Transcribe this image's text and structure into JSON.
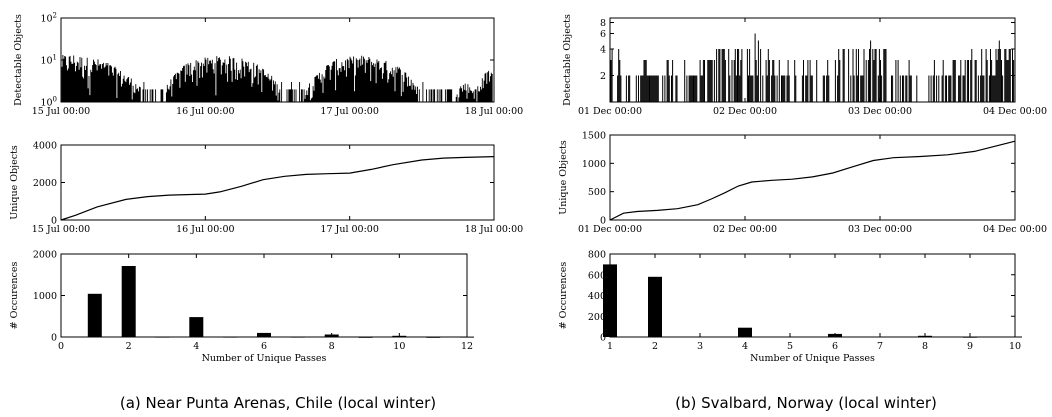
{
  "panels": [
    {
      "caption": "(a) Near Punta Arenas, Chile (local winter)",
      "charts": [
        {
          "type": "line",
          "ylabel": "Detectable Objects",
          "yscale": "log",
          "ylim": [
            1,
            100
          ],
          "yticks": [
            1,
            10,
            100
          ],
          "ytick_labels": [
            "10^0",
            "10^1",
            "10^2"
          ],
          "xlim": [
            0,
            3
          ],
          "xticks": [
            0,
            1,
            2,
            3
          ],
          "xtick_labels": [
            "15 Jul 00:00",
            "16 Jul 00:00",
            "17 Jul 00:00",
            "18 Jul 00:00"
          ],
          "description": "Dense spiky series of visible object counts, mostly 2-15, with daily active windows and lulls.",
          "envelope": [
            {
              "x": 0.0,
              "y": 13
            },
            {
              "x": 0.08,
              "y": 14
            },
            {
              "x": 0.16,
              "y": 12
            },
            {
              "x": 0.24,
              "y": 11
            },
            {
              "x": 0.32,
              "y": 9
            },
            {
              "x": 0.4,
              "y": 6
            },
            {
              "x": 0.48,
              "y": 4
            },
            {
              "x": 0.56,
              "y": 2
            },
            {
              "x": 0.64,
              "y": 2
            },
            {
              "x": 0.72,
              "y": 2
            },
            {
              "x": 0.8,
              "y": 5
            },
            {
              "x": 0.88,
              "y": 9
            },
            {
              "x": 0.96,
              "y": 11
            },
            {
              "x": 1.04,
              "y": 12
            },
            {
              "x": 1.12,
              "y": 13
            },
            {
              "x": 1.2,
              "y": 12
            },
            {
              "x": 1.28,
              "y": 11
            },
            {
              "x": 1.36,
              "y": 8
            },
            {
              "x": 1.44,
              "y": 5
            },
            {
              "x": 1.52,
              "y": 2
            },
            {
              "x": 1.6,
              "y": 2
            },
            {
              "x": 1.68,
              "y": 2
            },
            {
              "x": 1.76,
              "y": 4
            },
            {
              "x": 1.84,
              "y": 8
            },
            {
              "x": 1.92,
              "y": 11
            },
            {
              "x": 2.0,
              "y": 12
            },
            {
              "x": 2.08,
              "y": 13
            },
            {
              "x": 2.16,
              "y": 12
            },
            {
              "x": 2.24,
              "y": 10
            },
            {
              "x": 2.32,
              "y": 8
            },
            {
              "x": 2.4,
              "y": 5
            },
            {
              "x": 2.48,
              "y": 2
            },
            {
              "x": 2.56,
              "y": 2
            },
            {
              "x": 2.64,
              "y": 2
            },
            {
              "x": 2.72,
              "y": 2
            },
            {
              "x": 2.8,
              "y": 3
            },
            {
              "x": 2.88,
              "y": 2
            },
            {
              "x": 2.96,
              "y": 6
            }
          ]
        },
        {
          "type": "line",
          "ylabel": "Unique Objects",
          "ylim": [
            0,
            4000
          ],
          "yticks": [
            0,
            2000,
            4000
          ],
          "xlim": [
            0,
            3
          ],
          "xticks": [
            0,
            1,
            2,
            3
          ],
          "xtick_labels": [
            "15 Jul 00:00",
            "16 Jul 00:00",
            "17 Jul 00:00",
            "18 Jul 00:00"
          ],
          "series": [
            {
              "x": [
                0,
                0.1,
                0.25,
                0.45,
                0.6,
                0.75,
                0.9,
                1.0,
                1.1,
                1.25,
                1.4,
                1.55,
                1.7,
                1.85,
                2.0,
                2.15,
                2.3,
                2.5,
                2.65,
                2.8,
                3.0
              ],
              "y": [
                0,
                250,
                700,
                1100,
                1250,
                1330,
                1360,
                1380,
                1500,
                1800,
                2150,
                2330,
                2430,
                2470,
                2500,
                2700,
                2950,
                3200,
                3300,
                3340,
                3380
              ]
            }
          ]
        },
        {
          "type": "bar",
          "ylabel": "# Occurences",
          "xlabel": "Number of Unique Passes",
          "ylim": [
            0,
            2000
          ],
          "yticks": [
            0,
            1000,
            2000
          ],
          "xlim": [
            0,
            12
          ],
          "xticks": [
            0,
            2,
            4,
            6,
            8,
            10,
            12
          ],
          "x": [
            1,
            2,
            3,
            4,
            5,
            6,
            7,
            8,
            9,
            10,
            11,
            12
          ],
          "values": [
            1040,
            1710,
            10,
            480,
            10,
            100,
            10,
            60,
            5,
            30,
            5,
            10
          ]
        }
      ]
    },
    {
      "caption": "(b) Svalbard, Norway (local winter)",
      "charts": [
        {
          "type": "line",
          "ylabel": "Detectable Objects",
          "yscale": "log",
          "ylim": [
            1,
            9
          ],
          "yticks": [
            2,
            4,
            6,
            8
          ],
          "xlim": [
            0,
            3
          ],
          "xticks": [
            0,
            1,
            2,
            3
          ],
          "xtick_labels": [
            "01 Dec 00:00",
            "02 Dec 00:00",
            "03 Dec 00:00",
            "04 Dec 00:00"
          ],
          "description": "Sparse spiky series of visible object counts between 1 and 6 with clustered activity.",
          "envelope": [
            {
              "x": 0.0,
              "y": 4
            },
            {
              "x": 0.05,
              "y": 5
            },
            {
              "x": 0.1,
              "y": 3
            },
            {
              "x": 0.18,
              "y": 2
            },
            {
              "x": 0.28,
              "y": 3
            },
            {
              "x": 0.38,
              "y": 2
            },
            {
              "x": 0.48,
              "y": 2
            },
            {
              "x": 0.58,
              "y": 2
            },
            {
              "x": 0.66,
              "y": 3
            },
            {
              "x": 0.74,
              "y": 4
            },
            {
              "x": 0.82,
              "y": 5
            },
            {
              "x": 0.9,
              "y": 4
            },
            {
              "x": 0.98,
              "y": 5
            },
            {
              "x": 1.06,
              "y": 6
            },
            {
              "x": 1.14,
              "y": 4
            },
            {
              "x": 1.22,
              "y": 3
            },
            {
              "x": 1.32,
              "y": 2
            },
            {
              "x": 1.42,
              "y": 2
            },
            {
              "x": 1.55,
              "y": 2
            },
            {
              "x": 1.64,
              "y": 3
            },
            {
              "x": 1.72,
              "y": 4
            },
            {
              "x": 1.8,
              "y": 5
            },
            {
              "x": 1.88,
              "y": 4
            },
            {
              "x": 1.96,
              "y": 5
            },
            {
              "x": 2.04,
              "y": 4
            },
            {
              "x": 2.12,
              "y": 3
            },
            {
              "x": 2.22,
              "y": 2
            },
            {
              "x": 2.34,
              "y": 2
            },
            {
              "x": 2.46,
              "y": 2
            },
            {
              "x": 2.56,
              "y": 3
            },
            {
              "x": 2.64,
              "y": 4
            },
            {
              "x": 2.72,
              "y": 5
            },
            {
              "x": 2.8,
              "y": 4
            },
            {
              "x": 2.88,
              "y": 5
            },
            {
              "x": 2.96,
              "y": 4
            }
          ]
        },
        {
          "type": "line",
          "ylabel": "Unique Objects",
          "ylim": [
            0,
            1500
          ],
          "yticks": [
            0,
            500,
            1000,
            1500
          ],
          "xlim": [
            0,
            3
          ],
          "xticks": [
            0,
            1,
            2,
            3
          ],
          "xtick_labels": [
            "01 Dec 00:00",
            "02 Dec 00:00",
            "03 Dec 00:00",
            "04 Dec 00:00"
          ],
          "series": [
            {
              "x": [
                0,
                0.1,
                0.2,
                0.35,
                0.5,
                0.65,
                0.75,
                0.85,
                0.95,
                1.05,
                1.2,
                1.35,
                1.5,
                1.65,
                1.8,
                1.95,
                2.1,
                2.3,
                2.5,
                2.7,
                2.85,
                3.0
              ],
              "y": [
                0,
                120,
                150,
                170,
                200,
                270,
                370,
                480,
                600,
                670,
                700,
                720,
                760,
                830,
                940,
                1050,
                1100,
                1120,
                1150,
                1210,
                1300,
                1390
              ]
            }
          ]
        },
        {
          "type": "bar",
          "ylabel": "# Occurences",
          "xlabel": "Number of Unique Passes",
          "ylim": [
            0,
            800
          ],
          "yticks": [
            0,
            200,
            400,
            600,
            800
          ],
          "xlim": [
            1,
            10
          ],
          "xticks": [
            1,
            2,
            3,
            4,
            5,
            6,
            7,
            8,
            9,
            10
          ],
          "x": [
            1,
            2,
            3,
            4,
            5,
            6,
            7,
            8,
            9,
            10
          ],
          "values": [
            700,
            580,
            5,
            90,
            5,
            30,
            5,
            12,
            3,
            5
          ]
        }
      ]
    }
  ],
  "chart_data": [
    {
      "type": "line",
      "ylabel": "Detectable Objects",
      "yscale": "log",
      "ylim": [
        1,
        100
      ],
      "xtick_labels": [
        "15 Jul 00:00",
        "16 Jul 00:00",
        "17 Jul 00:00",
        "18 Jul 00:00"
      ]
    },
    {
      "type": "line",
      "ylabel": "Unique Objects",
      "ylim": [
        0,
        4000
      ],
      "xtick_labels": [
        "15 Jul 00:00",
        "16 Jul 00:00",
        "17 Jul 00:00",
        "18 Jul 00:00"
      ],
      "series": [
        {
          "y": [
            0,
            250,
            700,
            1100,
            1250,
            1330,
            1360,
            1380,
            1500,
            1800,
            2150,
            2330,
            2430,
            2470,
            2500,
            2700,
            2950,
            3200,
            3300,
            3340,
            3380
          ]
        }
      ]
    },
    {
      "type": "bar",
      "ylabel": "# Occurences",
      "xlabel": "Number of Unique Passes",
      "categories": [
        1,
        2,
        3,
        4,
        5,
        6,
        7,
        8,
        9,
        10,
        11,
        12
      ],
      "values": [
        1040,
        1710,
        10,
        480,
        10,
        100,
        10,
        60,
        5,
        30,
        5,
        10
      ]
    },
    {
      "type": "line",
      "ylabel": "Detectable Objects",
      "yscale": "log",
      "ylim": [
        1,
        9
      ],
      "xtick_labels": [
        "01 Dec 00:00",
        "02 Dec 00:00",
        "03 Dec 00:00",
        "04 Dec 00:00"
      ]
    },
    {
      "type": "line",
      "ylabel": "Unique Objects",
      "ylim": [
        0,
        1500
      ],
      "xtick_labels": [
        "01 Dec 00:00",
        "02 Dec 00:00",
        "03 Dec 00:00",
        "04 Dec 00:00"
      ],
      "series": [
        {
          "y": [
            0,
            120,
            150,
            170,
            200,
            270,
            370,
            480,
            600,
            670,
            700,
            720,
            760,
            830,
            940,
            1050,
            1100,
            1120,
            1150,
            1210,
            1300,
            1390
          ]
        }
      ]
    },
    {
      "type": "bar",
      "ylabel": "# Occurences",
      "xlabel": "Number of Unique Passes",
      "categories": [
        1,
        2,
        3,
        4,
        5,
        6,
        7,
        8,
        9,
        10
      ],
      "values": [
        700,
        580,
        5,
        90,
        5,
        30,
        5,
        12,
        3,
        5
      ]
    }
  ]
}
